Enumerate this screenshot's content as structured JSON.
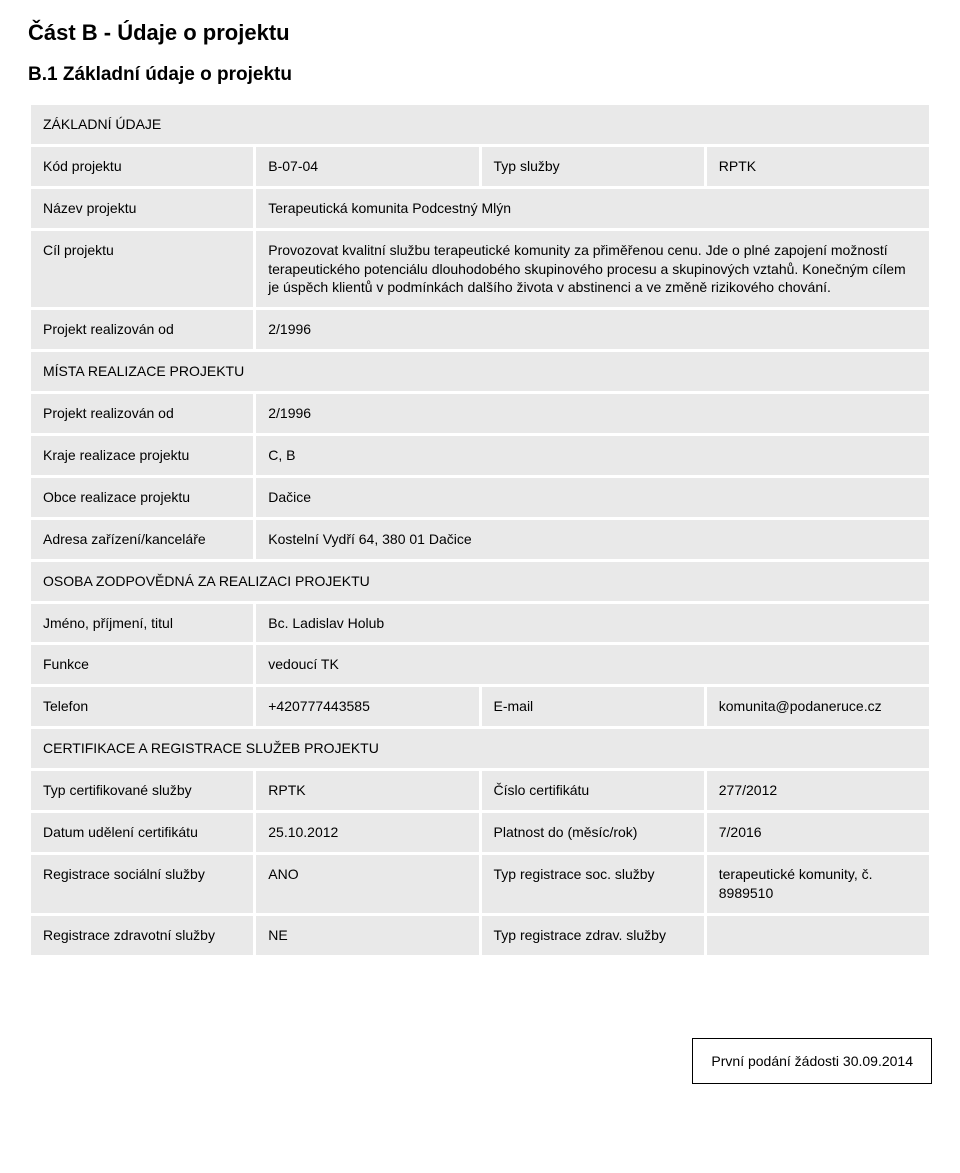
{
  "page": {
    "title": "Část B - Údaje o projektu",
    "subtitle": "B.1 Základní údaje o projektu",
    "footer": "První podání žádosti 30.09.2014"
  },
  "sections": {
    "basic": "ZÁKLADNÍ ÚDAJE",
    "places": "MÍSTA REALIZACE PROJEKTU",
    "person": "OSOBA ZODPOVĚDNÁ ZA REALIZACI PROJEKTU",
    "cert": "CERTIFIKACE A REGISTRACE SLUŽEB PROJEKTU"
  },
  "labels": {
    "project_code": "Kód projektu",
    "service_type": "Typ služby",
    "project_name": "Název projektu",
    "project_goal": "Cíl projektu",
    "realized_from": "Projekt realizován od",
    "regions": "Kraje realizace projektu",
    "municipalities": "Obce realizace projektu",
    "office_address": "Adresa zařízení/kanceláře",
    "name_title": "Jméno, příjmení, titul",
    "role": "Funkce",
    "phone": "Telefon",
    "email": "E-mail",
    "cert_service_type": "Typ certifikované služby",
    "cert_number": "Číslo certifikátu",
    "cert_date": "Datum udělení certifikátu",
    "valid_until": "Platnost do (měsíc/rok)",
    "social_reg": "Registrace sociální služby",
    "social_reg_type": "Typ registrace soc. služby",
    "health_reg": "Registrace zdravotní služby",
    "health_reg_type": "Typ registrace zdrav. služby"
  },
  "values": {
    "project_code": "B-07-04",
    "service_type": "RPTK",
    "project_name": "Terapeutická komunita Podcestný Mlýn",
    "project_goal": "Provozovat kvalitní službu terapeutické komunity za přiměřenou cenu. Jde o plné zapojení možností terapeutického potenciálu dlouhodobého skupinového procesu a skupinových vztahů. Konečným cílem je úspěch klientů v podmínkách dalšího života v abstinenci a ve změně rizikového chování.",
    "realized_from_1": "2/1996",
    "realized_from_2": "2/1996",
    "regions": "C, B",
    "municipalities": "Dačice",
    "office_address": "Kostelní Vydří 64, 380 01 Dačice",
    "name_title": "Bc. Ladislav Holub",
    "role": "vedoucí TK",
    "phone": "+420777443585",
    "email": "komunita@podaneruce.cz",
    "cert_service_type": "RPTK",
    "cert_number": "277/2012",
    "cert_date": "25.10.2012",
    "valid_until": "7/2016",
    "social_reg": "ANO",
    "social_reg_type": "terapeutické komunity, č. 8989510",
    "health_reg": "NE",
    "health_reg_type": ""
  }
}
